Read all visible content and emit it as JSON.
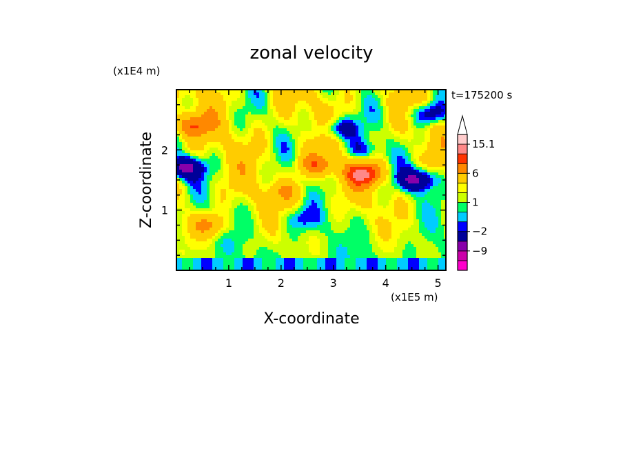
{
  "chart_data": {
    "type": "heatmap",
    "title": "zonal velocity",
    "xlabel": "X-coordinate",
    "ylabel": "Z-coordinate",
    "x_unit": "(x1E5 m)",
    "y_unit": "(x1E4 m)",
    "time_label": "t=175200 s",
    "xlim": [
      0,
      5.15
    ],
    "ylim": [
      0,
      3.0
    ],
    "x_ticks": [
      "1",
      "2",
      "3",
      "4",
      "5"
    ],
    "y_ticks": [
      "1",
      "2"
    ],
    "colorbar": {
      "levels": [
        -15,
        -12,
        -9,
        -6,
        -2,
        -1,
        0,
        1,
        2,
        3,
        6,
        9,
        12,
        15.1
      ],
      "labels": [
        "15.1",
        "6",
        "1",
        "−2",
        "−9"
      ],
      "colors": [
        "#ff00cc",
        "#cc00aa",
        "#8800aa",
        "#000099",
        "#0000ff",
        "#00ccff",
        "#00ff66",
        "#ccff00",
        "#ffff00",
        "#ffcc00",
        "#ff8800",
        "#ff3300",
        "#ff8888",
        "#ffcccc"
      ],
      "extend": "max"
    },
    "field_features": [
      {
        "x": 2.7,
        "z": 1.75,
        "u": 6
      },
      {
        "x": 3.6,
        "z": 1.6,
        "u": 9
      },
      {
        "x": 0.3,
        "z": 2.4,
        "u": 6
      },
      {
        "x": 0.6,
        "z": 0.75,
        "u": 5
      },
      {
        "x": 0.15,
        "z": 1.7,
        "u": -9
      },
      {
        "x": 4.6,
        "z": 1.5,
        "u": -9
      },
      {
        "x": 4.85,
        "z": 2.6,
        "u": -6
      },
      {
        "x": 3.1,
        "z": 2.35,
        "u": -6
      },
      {
        "x": 2.4,
        "z": 0.85,
        "u": -3
      },
      {
        "x": 3.55,
        "z": 2.0,
        "u": -4
      },
      {
        "x": 2.1,
        "z": 1.3,
        "u": 3
      }
    ]
  }
}
